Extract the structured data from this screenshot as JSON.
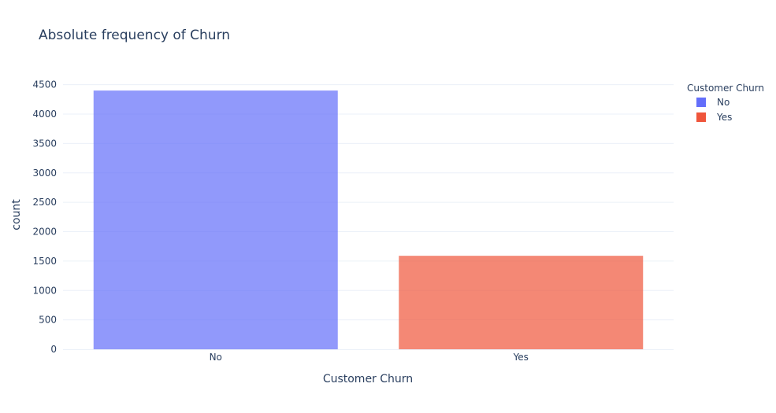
{
  "chart_data": {
    "type": "bar",
    "title": "Absolute frequency of Churn",
    "xlabel": "Customer Churn",
    "ylabel": "count",
    "categories": [
      "No",
      "Yes"
    ],
    "series": [
      {
        "name": "No",
        "category": "No",
        "value": 4400,
        "color": "#636efa"
      },
      {
        "name": "Yes",
        "category": "Yes",
        "value": 1590,
        "color": "#EF553B"
      }
    ],
    "ylim": [
      0,
      4736
    ],
    "yticks": [
      0,
      500,
      1000,
      1500,
      2000,
      2500,
      3000,
      3500,
      4000,
      4500
    ],
    "grid": true,
    "legend": {
      "title": "Customer Churn",
      "placement": "right"
    }
  }
}
